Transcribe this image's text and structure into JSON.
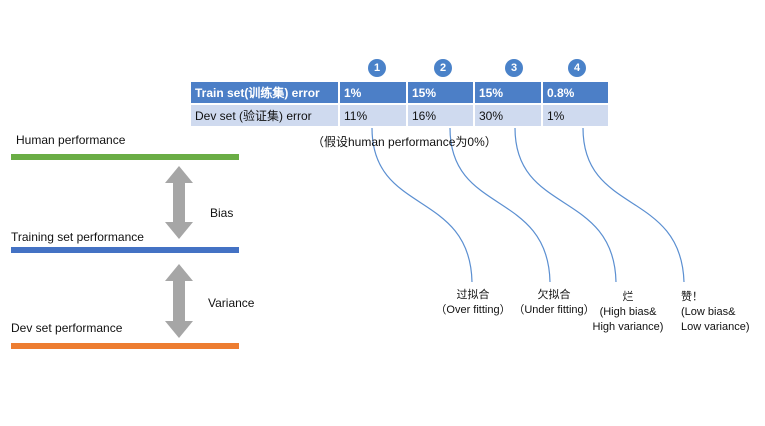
{
  "performance": {
    "human": "Human performance",
    "training": "Training set performance",
    "dev": "Dev set performance",
    "bias_label": "Bias",
    "variance_label": "Variance"
  },
  "table": {
    "columns": [
      "1",
      "2",
      "3",
      "4"
    ],
    "train_row": {
      "label": "Train set(训练集) error",
      "values": [
        "1%",
        "15%",
        "15%",
        "0.8%"
      ]
    },
    "dev_row": {
      "label": "Dev set (验证集) error",
      "values": [
        "11%",
        "16%",
        "30%",
        "1%"
      ]
    }
  },
  "note": "（假设human performance为0%）",
  "categories": [
    {
      "line1": "过拟合",
      "line2": "（Over fitting）"
    },
    {
      "line1": "欠拟合",
      "line2": "（Under fitting）"
    },
    {
      "line1": "烂",
      "line2": "(High bias&",
      "line3": "High variance)"
    },
    {
      "line1": "赞！",
      "line2": "(Low bias&",
      "line3": "Low variance)"
    }
  ],
  "colors": {
    "human_bar": "#6aad45",
    "training_bar": "#4472c4",
    "dev_bar": "#ed7d31",
    "arrow": "#a6a6a6",
    "badge": "#4a82c9",
    "connector": "#5b8fd1"
  }
}
